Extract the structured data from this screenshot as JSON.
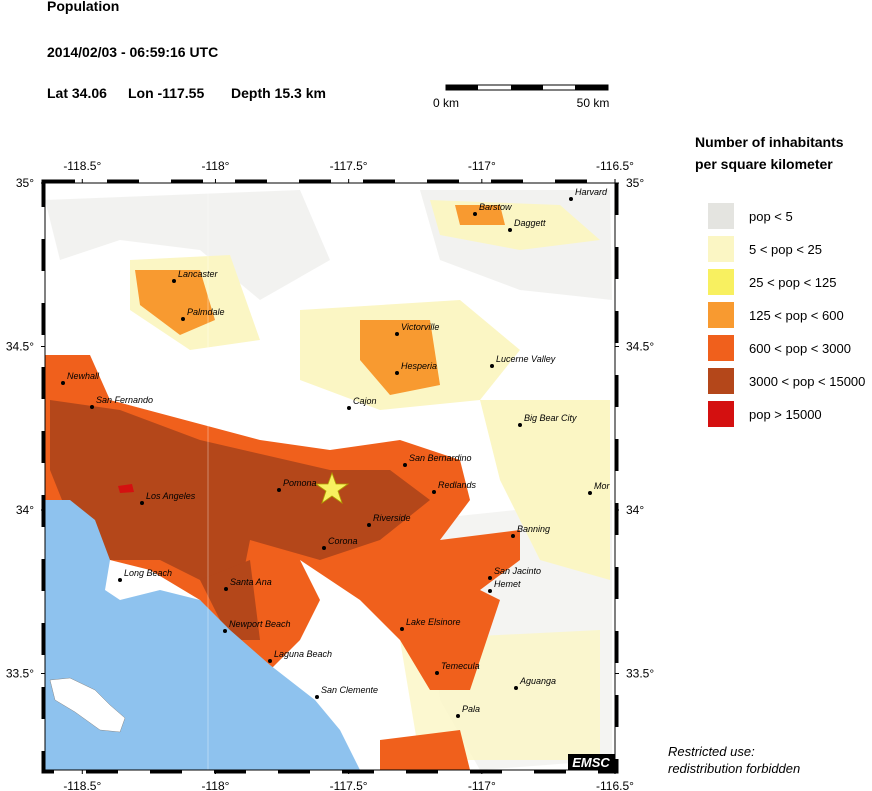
{
  "header": {
    "title": "Population",
    "datetime": "2014/02/03 - 06:59:16 UTC",
    "location": [
      "Lat 34.06",
      "Lon -117.55",
      "Depth  15.3 km"
    ]
  },
  "scale_bar": {
    "labels": [
      "0 km",
      "50 km"
    ]
  },
  "map": {
    "lon_ticks": [
      {
        "value": -118.5,
        "label": "-118.5°"
      },
      {
        "value": -118,
        "label": "-118°"
      },
      {
        "value": -117.5,
        "label": "-117.5°"
      },
      {
        "value": -117,
        "label": "-117°"
      },
      {
        "value": -116.5,
        "label": "-116.5°"
      }
    ],
    "lat_ticks": [
      {
        "value": 35,
        "label": "35°"
      },
      {
        "value": 34.5,
        "label": "34.5°"
      },
      {
        "value": 34,
        "label": "34°"
      },
      {
        "value": 33.5,
        "label": "33.5°"
      }
    ],
    "cities": [
      "Harvard",
      "Barstow",
      "Daggett",
      "Lancaster",
      "Palmdale",
      "Victorville",
      "Lucerne Valley",
      "Hesperia",
      "Newhall",
      "Cajon",
      "San Fernando",
      "Big Bear City",
      "San Bernardino",
      "Redlands",
      "Mor",
      "Pomona",
      "Los Angeles",
      "Riverside",
      "Banning",
      "Corona",
      "San Jacinto",
      "Long Beach",
      "Hemet",
      "Santa Ana",
      "Newport Beach",
      "Lake Elsinore",
      "Laguna Beach",
      "Temecula",
      "Aguanga",
      "San Clemente",
      "Pala"
    ],
    "credit": "EMSC"
  },
  "legend": {
    "title": [
      "Number of inhabitants",
      "per square kilometer"
    ],
    "items": [
      {
        "label": "pop < 5",
        "color": "#e4e4e0"
      },
      {
        "label": "5 < pop < 25",
        "color": "#fbf6c4"
      },
      {
        "label": "25 < pop < 125",
        "color": "#f8f060"
      },
      {
        "label": "125 < pop < 600",
        "color": "#f89a30"
      },
      {
        "label": "600 < pop < 3000",
        "color": "#f0601c"
      },
      {
        "label": "3000 < pop < 15000",
        "color": "#b4471a"
      },
      {
        "label": "pop > 15000",
        "color": "#d41010"
      }
    ]
  },
  "footer": [
    "Restricted use:",
    "redistribution forbidden"
  ]
}
